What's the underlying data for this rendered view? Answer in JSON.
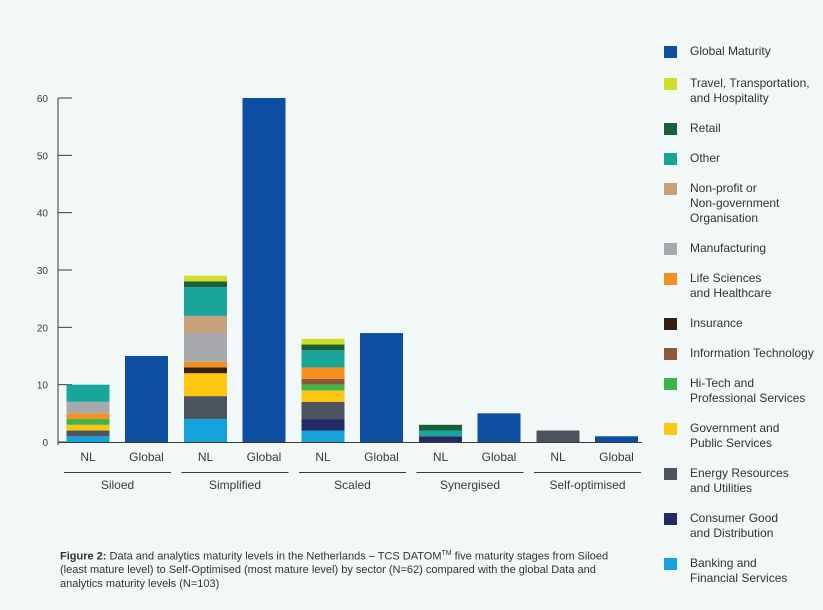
{
  "chart_data": {
    "type": "bar",
    "stacked": true,
    "ylim": [
      0,
      60
    ],
    "yticks": [
      "0",
      "10",
      "20",
      "30",
      "40",
      "50",
      "60"
    ],
    "groups": [
      "Siloed",
      "Simplified",
      "Scaled",
      "Synergised",
      "Self-optimised"
    ],
    "bars": [
      {
        "group": "Siloed",
        "label": "NL",
        "segments": {
          "Banking and Financial Services": 1,
          "Consumer Good and Distribution": 0,
          "Energy Resources and Utilities": 1,
          "Government and Public Services": 1,
          "Hi-Tech and Professional Services": 1,
          "Information Technology": 0,
          "Insurance": 0,
          "Life Sciences and Healthcare": 1,
          "Manufacturing": 2,
          "Non-profit or Non-government Organisation": 0,
          "Other": 3,
          "Retail": 0,
          "Travel, Transportation, and Hospitality": 0,
          "Global Maturity": 0
        }
      },
      {
        "group": "Siloed",
        "label": "Global",
        "segments": {
          "Global Maturity": 15
        }
      },
      {
        "group": "Simplified",
        "label": "NL",
        "segments": {
          "Banking and Financial Services": 4,
          "Consumer Good and Distribution": 0,
          "Energy Resources and Utilities": 4,
          "Government and Public Services": 4,
          "Hi-Tech and Professional Services": 0,
          "Information Technology": 0,
          "Insurance": 1,
          "Life Sciences and Healthcare": 1,
          "Manufacturing": 5,
          "Non-profit or Non-government Organisation": 3,
          "Other": 5,
          "Retail": 1,
          "Travel, Transportation, and Hospitality": 1,
          "Global Maturity": 0
        }
      },
      {
        "group": "Simplified",
        "label": "Global",
        "segments": {
          "Global Maturity": 60
        }
      },
      {
        "group": "Scaled",
        "label": "NL",
        "segments": {
          "Banking and Financial Services": 2,
          "Consumer Good and Distribution": 2,
          "Energy Resources and Utilities": 3,
          "Government and Public Services": 2,
          "Hi-Tech and Professional Services": 1,
          "Information Technology": 1,
          "Insurance": 0,
          "Life Sciences and Healthcare": 2,
          "Manufacturing": 0,
          "Non-profit or Non-government Organisation": 0,
          "Other": 3,
          "Retail": 1,
          "Travel, Transportation, and Hospitality": 1,
          "Global Maturity": 0
        }
      },
      {
        "group": "Scaled",
        "label": "Global",
        "segments": {
          "Global Maturity": 19
        }
      },
      {
        "group": "Synergised",
        "label": "NL",
        "segments": {
          "Consumer Good and Distribution": 1,
          "Other": 1,
          "Retail": 1
        }
      },
      {
        "group": "Synergised",
        "label": "Global",
        "segments": {
          "Global Maturity": 5
        }
      },
      {
        "group": "Self-optimised",
        "label": "NL",
        "segments": {
          "Energy Resources and Utilities": 2
        }
      },
      {
        "group": "Self-optimised",
        "label": "Global",
        "segments": {
          "Global Maturity": 1
        }
      }
    ],
    "stack_order": [
      "Banking and Financial Services",
      "Consumer Good and Distribution",
      "Energy Resources and Utilities",
      "Government and Public Services",
      "Hi-Tech and Professional Services",
      "Information Technology",
      "Insurance",
      "Life Sciences and Healthcare",
      "Manufacturing",
      "Non-profit or Non-government Organisation",
      "Other",
      "Retail",
      "Travel, Transportation, and Hospitality",
      "Global Maturity"
    ],
    "legend": [
      {
        "name": "Global Maturity",
        "label": "Global Maturity",
        "color": "#0e4ea2"
      },
      {
        "name": "Travel, Transportation, and Hospitality",
        "label": "Travel, Transportation,\nand Hospitality",
        "color": "#d4dc2a"
      },
      {
        "name": "Retail",
        "label": "Retail",
        "color": "#17603a"
      },
      {
        "name": "Other",
        "label": "Other",
        "color": "#1aa59b"
      },
      {
        "name": "Non-profit or Non-government Organisation",
        "label": "Non-profit or\nNon-government\nOrganisation",
        "color": "#c8a07a"
      },
      {
        "name": "Manufacturing",
        "label": "Manufacturing",
        "color": "#a7a9ac"
      },
      {
        "name": "Life Sciences and Healthcare",
        "label": "Life Sciences\nand Healthcare",
        "color": "#f39021"
      },
      {
        "name": "Insurance",
        "label": "Insurance",
        "color": "#35200f"
      },
      {
        "name": "Information Technology",
        "label": "Information Technology",
        "color": "#8a5a3a"
      },
      {
        "name": "Hi-Tech and Professional Services",
        "label": "Hi-Tech and\nProfessional Services",
        "color": "#3bb54a"
      },
      {
        "name": "Government and Public Services",
        "label": "Government and\nPublic Services",
        "color": "#fdc70f"
      },
      {
        "name": "Energy Resources and Utilities",
        "label": "Energy Resources\nand Utilities",
        "color": "#4c555d"
      },
      {
        "name": "Consumer Good and Distribution",
        "label": "Consumer Good\nand Distribution",
        "color": "#252a64"
      },
      {
        "name": "Banking and Financial Services",
        "label": "Banking and\nFinancial Services",
        "color": "#14a3dc"
      }
    ]
  },
  "caption": {
    "figure_label": "Figure 2:",
    "text_before_sup": " Data and analytics maturity levels in the Netherlands – TCS DATOM",
    "sup": "TM",
    "text_after_sup": " five maturity stages from Siloed (least mature level) to Self-Optimised (most mature level) by sector (N=62) compared with the global Data and analytics maturity levels (N=103)"
  }
}
